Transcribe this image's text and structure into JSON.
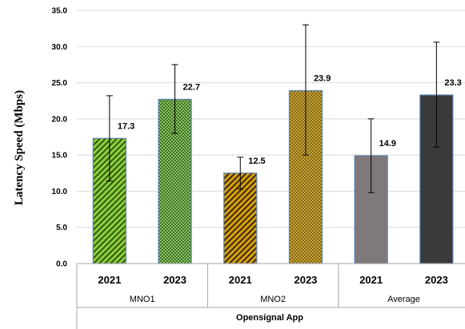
{
  "chart_data": {
    "type": "bar",
    "ylabel": "Latency Speed (Mbps)",
    "ylim": [
      0,
      35
    ],
    "y_ticks": [
      "0.0",
      "5.0",
      "10.0",
      "15.0",
      "20.0",
      "25.0",
      "30.0",
      "35.0"
    ],
    "grid": true,
    "categories": [
      "2021",
      "2023",
      "2021",
      "2023",
      "2021",
      "2023"
    ],
    "groups": [
      "MNO1",
      "MNO2",
      "Average"
    ],
    "top_group": "Opensignal App",
    "values": [
      17.3,
      22.7,
      12.5,
      23.9,
      14.9,
      23.3
    ],
    "data_labels": [
      "17.3",
      "22.7",
      "12.5",
      "23.9",
      "14.9",
      "23.3"
    ],
    "error_upper": [
      23.2,
      27.5,
      14.7,
      33.0,
      20.0,
      30.6
    ],
    "error_lower": [
      11.4,
      18.0,
      10.3,
      15.0,
      9.8,
      16.1
    ],
    "bar_colors": [
      "#8fcf3c",
      "#3a7a1a",
      "#c8900a",
      "#8a6a08",
      "#7f7979",
      "#3a3a3a"
    ],
    "bar_patterns": [
      "diagonal",
      "dots",
      "diagonal",
      "dots",
      "solid",
      "solid"
    ]
  }
}
